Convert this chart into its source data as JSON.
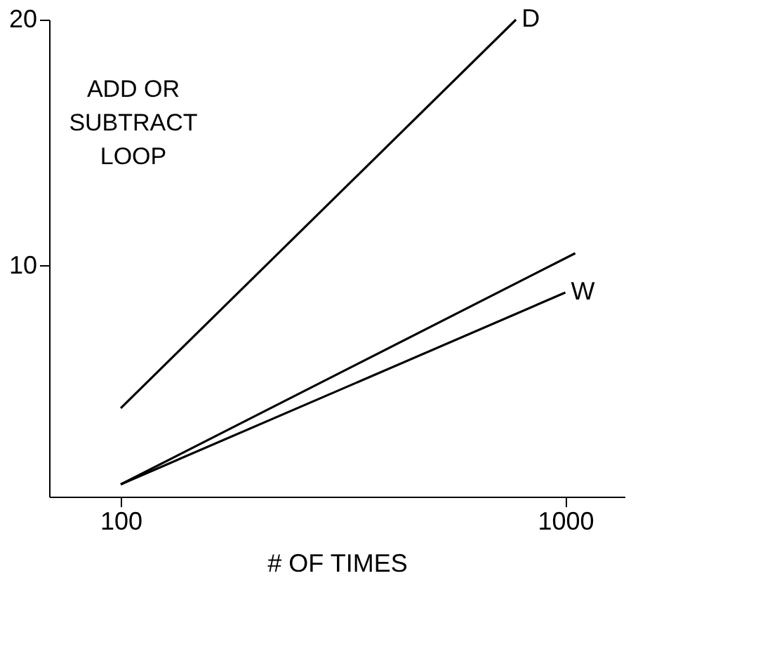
{
  "chart_data": {
    "type": "line",
    "xlabel": "# OF TIMES",
    "xlim": [
      -45,
      1120
    ],
    "xticks": [
      100,
      1000
    ],
    "ylim": [
      0.6,
      20
    ],
    "yticks": [
      10,
      20
    ],
    "grid": false,
    "marker": "none",
    "line_style": "solid",
    "series": [
      {
        "name": "D",
        "color": "#000000",
        "x": [
          100,
          900
        ],
        "values": [
          4.2,
          20
        ]
      },
      {
        "color": "#000000",
        "x": [
          100,
          1020
        ],
        "values": [
          1.1,
          10.5
        ]
      },
      {
        "name": "W",
        "color": "#000000",
        "x": [
          100,
          1000
        ],
        "values": [
          1.1,
          8.9
        ]
      }
    ],
    "annotations": [
      "ADD OR\nSUBTRACT\nLOOP"
    ]
  }
}
